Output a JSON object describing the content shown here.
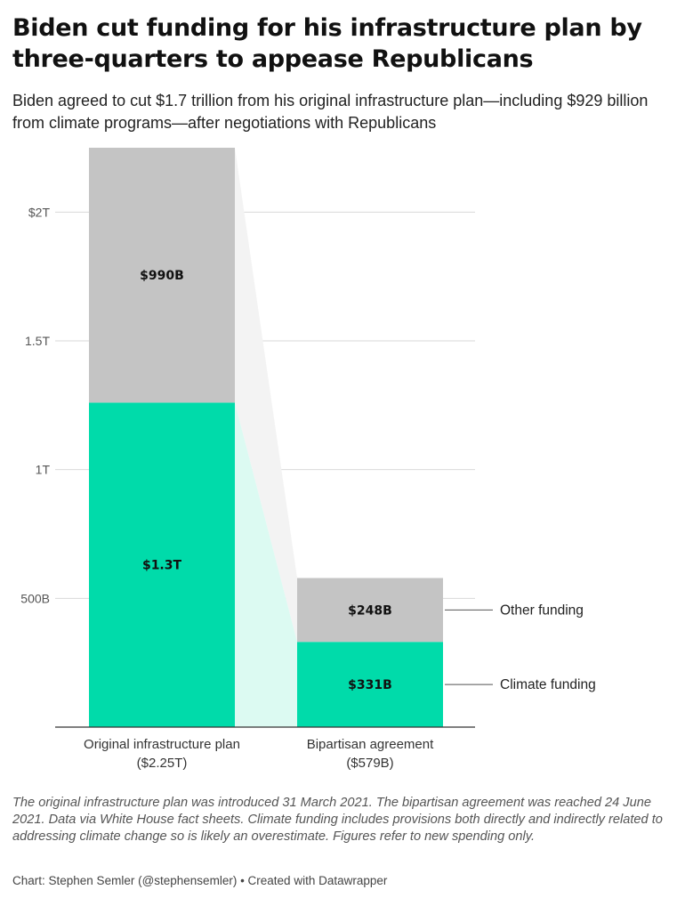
{
  "header": {
    "title": "Biden cut funding for his infrastructure plan by three-quarters to appease Republicans",
    "subtitle": "Biden agreed to cut $1.7 trillion from his original infrastructure plan—including $929 billion from climate programs—after negotiations with Republicans"
  },
  "chart_data": {
    "type": "bar",
    "stacked": true,
    "title": "Biden cut funding for his infrastructure plan by three-quarters to appease Republicans",
    "categories": [
      {
        "line1": "Original infrastructure plan",
        "line2": "($2.25T)"
      },
      {
        "line1": "Bipartisan agreement",
        "line2": "($579B)"
      }
    ],
    "series": [
      {
        "name": "Climate funding",
        "color": "#00dbaa",
        "values": [
          1260,
          331
        ],
        "labels": [
          "$1.3T",
          "$331B"
        ]
      },
      {
        "name": "Other funding",
        "color": "#c4c4c4",
        "values": [
          990,
          248
        ],
        "labels": [
          "$990B",
          "$248B"
        ]
      }
    ],
    "y_ticks": [
      {
        "value": 500,
        "label": "500B"
      },
      {
        "value": 1000,
        "label": "1T"
      },
      {
        "value": 1500,
        "label": "1.5T"
      },
      {
        "value": 2000,
        "label": "$2T"
      }
    ],
    "ylim": [
      0,
      2250
    ],
    "unit": "billion USD",
    "grid": true,
    "connector_color_other": "#f3f3f3",
    "connector_color_climate": "#dcfaf2"
  },
  "footer": {
    "notes": "The original infrastructure plan was introduced 31 March 2021. The bipartisan agreement was reached 24 June 2021. Data via White House fact sheets. Climate funding includes provisions both directly and indirectly related to addressing climate change so is likely an overestimate. Figures refer to new spending only.",
    "credit": "Chart: Stephen Semler (@stephensemler) • Created with Datawrapper"
  }
}
